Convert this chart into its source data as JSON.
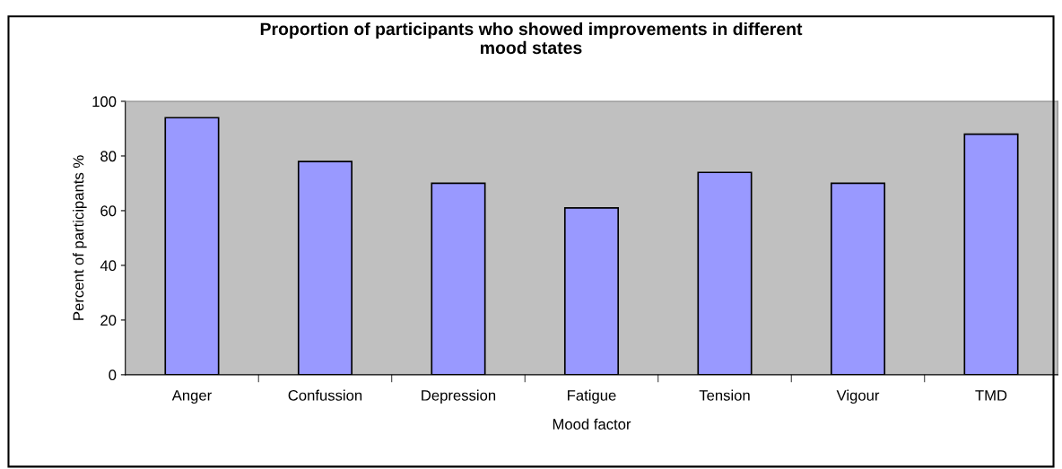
{
  "chart_data": {
    "type": "bar",
    "title": "Proportion of participants who showed improvements in different\nmood states",
    "xlabel": "Mood factor",
    "ylabel": "Percent of participants %",
    "categories": [
      "Anger",
      "Confussion",
      "Depression",
      "Fatigue",
      "Tension",
      "Vigour",
      "TMD"
    ],
    "values": [
      94,
      78,
      70,
      61,
      74,
      70,
      88
    ],
    "color": "#9999ff",
    "ylim": [
      0,
      100
    ],
    "yticks": [
      0,
      20,
      40,
      60,
      80,
      100
    ],
    "grid": false,
    "legend": false
  }
}
